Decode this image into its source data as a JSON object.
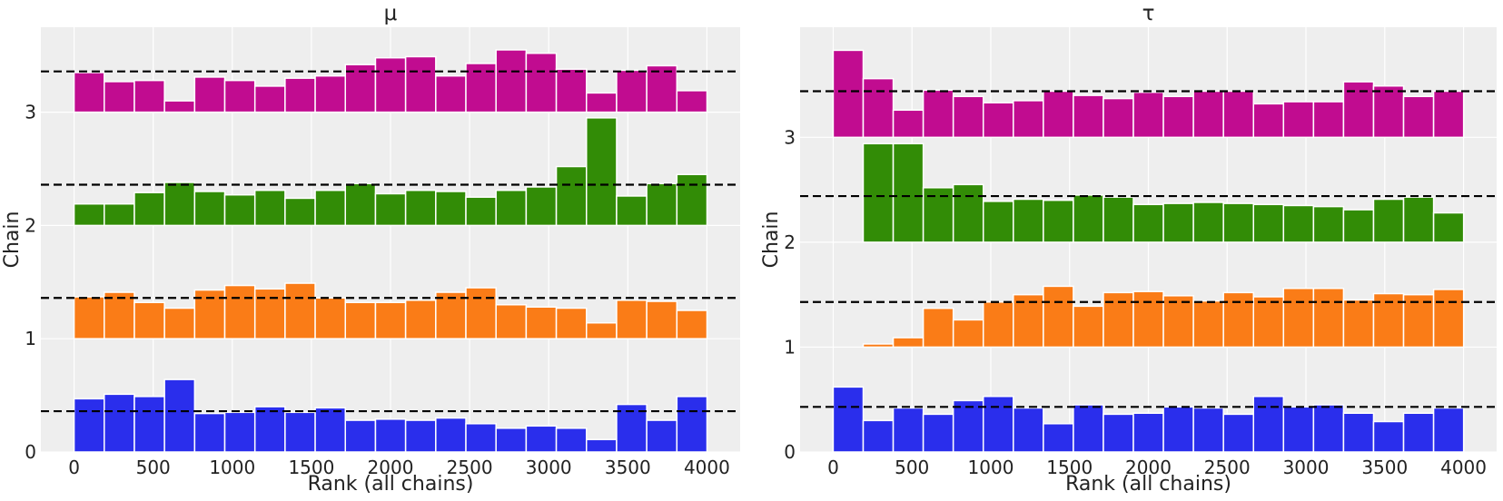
{
  "chart_data": [
    {
      "type": "bar",
      "title": "μ",
      "xlabel": "Rank (all chains)",
      "ylabel": "Chain",
      "xlim": [
        -210,
        4210
      ],
      "ylim": [
        0,
        3.75
      ],
      "xticks": [
        "0",
        "500",
        "1000",
        "1500",
        "2000",
        "2500",
        "3000",
        "3500",
        "4000"
      ],
      "yticks": [
        "0",
        "1",
        "2",
        "3"
      ],
      "bin_width": 190.5,
      "bin_starts": [
        0,
        190.5,
        381,
        571.5,
        762,
        952.5,
        1143,
        1333.5,
        1524,
        1714.5,
        1905,
        2095.5,
        2286,
        2476.5,
        2667,
        2857.5,
        3048,
        3238.5,
        3429,
        3619.5,
        3810
      ],
      "reference_levels": [
        0.36,
        1.36,
        2.36,
        3.36
      ],
      "grid": true,
      "series": [
        {
          "name": "0",
          "color": "#2a2eec",
          "offset": 0,
          "values": [
            0.47,
            0.51,
            0.49,
            0.64,
            0.34,
            0.35,
            0.4,
            0.35,
            0.39,
            0.28,
            0.29,
            0.28,
            0.3,
            0.25,
            0.21,
            0.23,
            0.21,
            0.11,
            0.42,
            0.28,
            0.49
          ]
        },
        {
          "name": "1",
          "color": "#fa7c17",
          "offset": 1,
          "values": [
            0.37,
            0.41,
            0.32,
            0.27,
            0.43,
            0.47,
            0.44,
            0.49,
            0.36,
            0.32,
            0.32,
            0.34,
            0.41,
            0.45,
            0.3,
            0.28,
            0.27,
            0.14,
            0.34,
            0.33,
            0.25
          ]
        },
        {
          "name": "2",
          "color": "#328c06",
          "offset": 2,
          "values": [
            0.19,
            0.19,
            0.29,
            0.38,
            0.3,
            0.27,
            0.31,
            0.24,
            0.31,
            0.37,
            0.28,
            0.31,
            0.3,
            0.25,
            0.31,
            0.34,
            0.52,
            0.95,
            0.26,
            0.37,
            0.45
          ]
        },
        {
          "name": "3",
          "color": "#c10c90",
          "offset": 3,
          "values": [
            0.35,
            0.27,
            0.28,
            0.1,
            0.31,
            0.28,
            0.23,
            0.3,
            0.32,
            0.42,
            0.48,
            0.49,
            0.32,
            0.43,
            0.55,
            0.52,
            0.38,
            0.17,
            0.37,
            0.41,
            0.19
          ]
        }
      ]
    },
    {
      "type": "bar",
      "title": "τ",
      "xlabel": "Rank (all chains)",
      "ylabel": "Chain",
      "xlim": [
        -210,
        4210
      ],
      "ylim": [
        0,
        4.05
      ],
      "xticks": [
        "0",
        "500",
        "1000",
        "1500",
        "2000",
        "2500",
        "3000",
        "3500",
        "4000"
      ],
      "yticks": [
        "0",
        "1",
        "2",
        "3"
      ],
      "bin_width": 190.5,
      "bin_starts": [
        0,
        190.5,
        381,
        571.5,
        762,
        952.5,
        1143,
        1333.5,
        1524,
        1714.5,
        1905,
        2095.5,
        2286,
        2476.5,
        2667,
        2857.5,
        3048,
        3238.5,
        3429,
        3619.5,
        3810
      ],
      "reference_levels": [
        0.43,
        1.43,
        2.44,
        3.44
      ],
      "grid": true,
      "series": [
        {
          "name": "0",
          "color": "#2a2eec",
          "offset": 0,
          "values": [
            0.62,
            0.3,
            0.42,
            0.36,
            0.49,
            0.53,
            0.42,
            0.27,
            0.45,
            0.36,
            0.37,
            0.43,
            0.42,
            0.36,
            0.53,
            0.43,
            0.45,
            0.37,
            0.29,
            0.37,
            0.42
          ]
        },
        {
          "name": "1",
          "color": "#fa7c17",
          "offset": 1,
          "values": [
            0,
            0.03,
            0.09,
            0.37,
            0.26,
            0.43,
            0.5,
            0.58,
            0.39,
            0.52,
            0.53,
            0.49,
            0.44,
            0.52,
            0.48,
            0.56,
            0.56,
            0.45,
            0.51,
            0.5,
            0.55
          ]
        },
        {
          "name": "2",
          "color": "#328c06",
          "offset": 2,
          "values": [
            0,
            0.94,
            0.94,
            0.52,
            0.55,
            0.39,
            0.41,
            0.4,
            0.45,
            0.43,
            0.36,
            0.37,
            0.38,
            0.37,
            0.36,
            0.35,
            0.34,
            0.31,
            0.41,
            0.43,
            0.28
          ]
        },
        {
          "name": "3",
          "color": "#c10c90",
          "offset": 3,
          "values": [
            0.83,
            0.56,
            0.26,
            0.45,
            0.39,
            0.33,
            0.35,
            0.44,
            0.4,
            0.37,
            0.43,
            0.39,
            0.44,
            0.44,
            0.32,
            0.34,
            0.34,
            0.53,
            0.49,
            0.39,
            0.44
          ]
        }
      ]
    }
  ]
}
